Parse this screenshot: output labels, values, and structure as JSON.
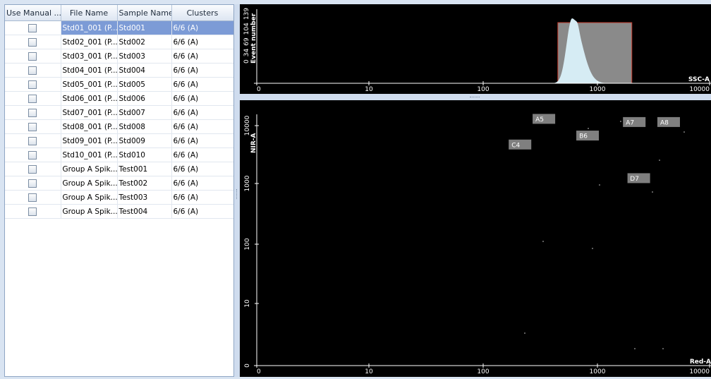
{
  "grid": {
    "columns": [
      "Use Manual ...",
      "File Name",
      "Sample Name",
      "Clusters"
    ],
    "rows": [
      {
        "file": "Std01_001 (P...",
        "sample": "Std001",
        "clusters": "6/6 (A)",
        "selected": true
      },
      {
        "file": "Std02_001 (P...",
        "sample": "Std002",
        "clusters": "6/6 (A)"
      },
      {
        "file": "Std03_001 (P...",
        "sample": "Std003",
        "clusters": "6/6 (A)"
      },
      {
        "file": "Std04_001 (P...",
        "sample": "Std004",
        "clusters": "6/6 (A)"
      },
      {
        "file": "Std05_001 (P...",
        "sample": "Std005",
        "clusters": "6/6 (A)"
      },
      {
        "file": "Std06_001 (P...",
        "sample": "Std006",
        "clusters": "6/6 (A)"
      },
      {
        "file": "Std07_001 (P...",
        "sample": "Std007",
        "clusters": "6/6 (A)"
      },
      {
        "file": "Std08_001 (P...",
        "sample": "Std008",
        "clusters": "6/6 (A)"
      },
      {
        "file": "Std09_001 (P...",
        "sample": "Std009",
        "clusters": "6/6 (A)"
      },
      {
        "file": "Std10_001 (P...",
        "sample": "Std010",
        "clusters": "6/6 (A)"
      },
      {
        "file": "Group A Spik...",
        "sample": "Test001",
        "clusters": "6/6 (A)"
      },
      {
        "file": "Group A Spik...",
        "sample": "Test002",
        "clusters": "6/6 (A)"
      },
      {
        "file": "Group A Spik...",
        "sample": "Test003",
        "clusters": "6/6 (A)"
      },
      {
        "file": "Group A Spik...",
        "sample": "Test004",
        "clusters": "6/6 (A)"
      }
    ]
  },
  "histogram": {
    "ylabel": "Event number",
    "yticks": [
      "0",
      "34",
      "69",
      "104",
      "139"
    ],
    "xlabel": "SSC-A",
    "xticks": [
      "0",
      "10",
      "100",
      "1000",
      "10000"
    ],
    "gate_range": [
      450,
      2000
    ],
    "colors": {
      "fill": "#d6ecf4",
      "gate": "#8a8a8a",
      "gate_border": "#c0392b",
      "axis": "#ffffff"
    }
  },
  "scatter": {
    "ylabel": "NIR-A",
    "yticks": [
      "0",
      "10",
      "100",
      "1000",
      "10000"
    ],
    "xlabel": "Red-A",
    "xticks": [
      "0",
      "10",
      "100",
      "1000",
      "10000"
    ],
    "clusters": [
      {
        "label": "A5",
        "x": 340,
        "y": 13000
      },
      {
        "label": "A7",
        "x": 2100,
        "y": 11500
      },
      {
        "label": "A8",
        "x": 4200,
        "y": 11500
      },
      {
        "label": "B6",
        "x": 820,
        "y": 6800
      },
      {
        "label": "C4",
        "x": 210,
        "y": 4800
      },
      {
        "label": "D7",
        "x": 2300,
        "y": 1300
      }
    ],
    "colors": {
      "label_bg": "#7f7f7f",
      "label_text": "#ffffff",
      "axis": "#ffffff"
    }
  }
}
